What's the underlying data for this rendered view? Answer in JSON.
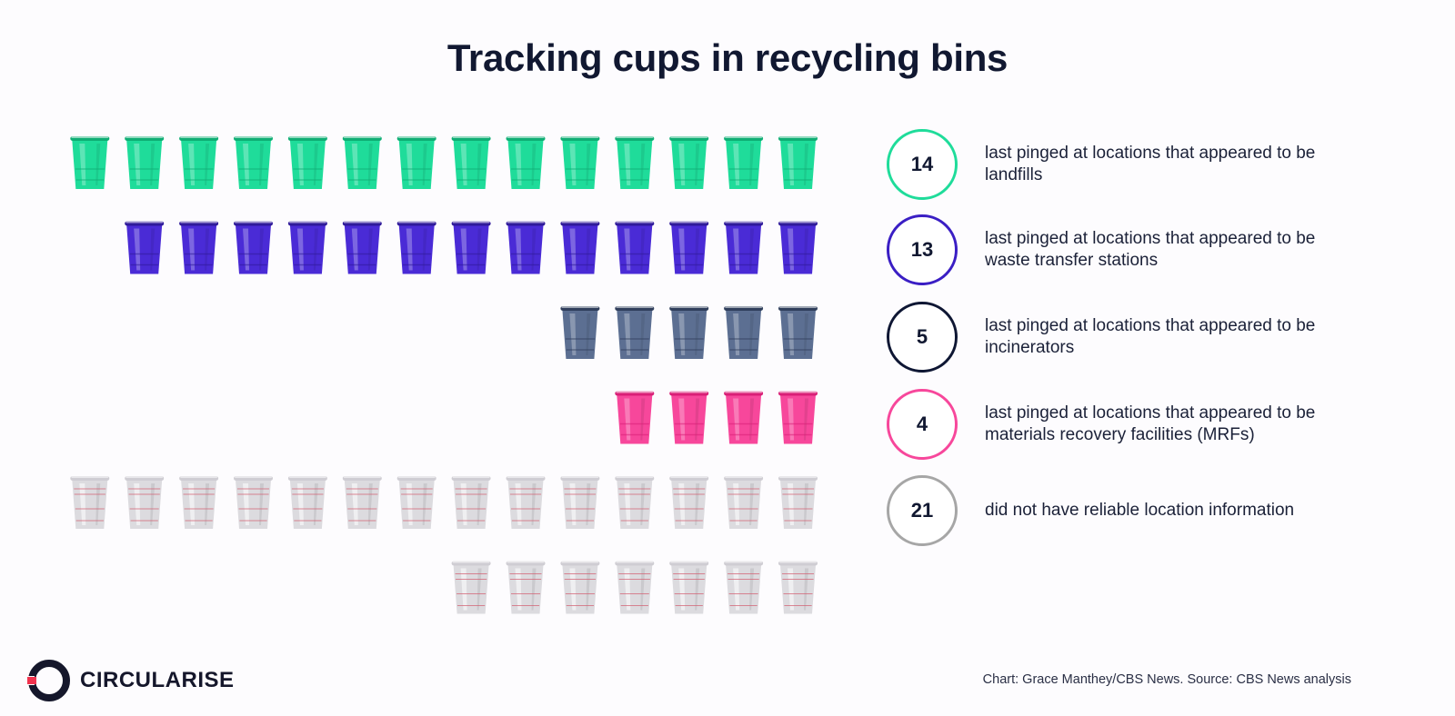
{
  "title": "Tracking cups in recycling bins",
  "chart_data": {
    "type": "pictogram",
    "title": "Tracking cups in recycling bins",
    "unit": "cups",
    "categories": [
      {
        "value": 14,
        "label": "last pinged at locations that appeared to be landfills",
        "color": "#1fdc9a",
        "rim": "#0fae74"
      },
      {
        "value": 13,
        "label": "last pinged at locations that appeared to be waste transfer stations",
        "color": "#4a2bd6",
        "rim": "#2f1a9a"
      },
      {
        "value": 5,
        "label": "last pinged at locations that appeared to be incinerators",
        "color": "#5c6f92",
        "rim": "#303f5c"
      },
      {
        "value": 4,
        "label": "last pinged at locations that appeared to be materials recovery facilities (MRFs)",
        "color": "#f7479b",
        "rim": "#d91f77"
      },
      {
        "value": 21,
        "label": "did not have reliable location information",
        "color": "#dcdbdf",
        "rim": "#b0aeb6"
      }
    ],
    "cups_per_row": 14,
    "alignment": "right"
  },
  "badge_borders": [
    "#1fdc9a",
    "#3a1ec4",
    "#0e1633",
    "#f7479b",
    "#a6a6a6"
  ],
  "brand": {
    "name": "CIRCULARISE",
    "accent": "#f2334e"
  },
  "source": "Chart: Grace Manthey/CBS News. Source: CBS News analysis"
}
